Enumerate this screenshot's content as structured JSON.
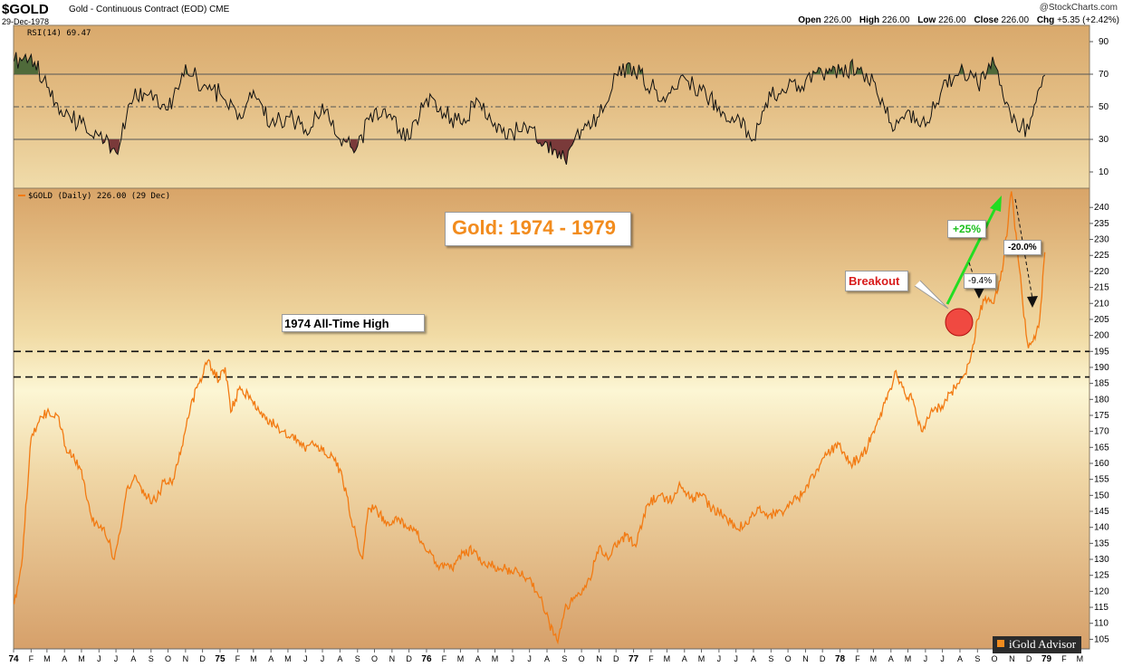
{
  "header": {
    "symbol": "$GOLD",
    "description": "Gold - Continuous Contract (EOD)",
    "exchange": "CME",
    "date": "29-Dec-1978",
    "credit": "@StockCharts.com",
    "open_label": "Open",
    "open": "226.00",
    "high_label": "High",
    "high": "226.00",
    "low_label": "Low",
    "low": "226.00",
    "close_label": "Close",
    "close": "226.00",
    "chg_label": "Chg",
    "chg": "+5.35 (+2.42%)"
  },
  "colors": {
    "price_line": "#f27a12",
    "rsi_line": "#111111",
    "rsi_overbought_fill": "#4f6a3a",
    "rsi_oversold_fill": "#7a3a3a",
    "arrow_green": "#22dd22",
    "breakout_circle": "#f03030"
  },
  "chart_data": [
    {
      "type": "line",
      "panel": "RSI",
      "label": "RSI(14) 69.47",
      "period": 14,
      "last_value": 69.47,
      "ylim": [
        0,
        100
      ],
      "y_ticks": [
        10,
        30,
        50,
        70,
        90
      ],
      "reference_lines": [
        30,
        50,
        70
      ],
      "x": [
        "1974-01-02",
        "1974-02-01",
        "1974-03-01",
        "1974-04-01",
        "1974-05-01",
        "1974-06-01",
        "1974-07-01",
        "1974-08-01",
        "1974-09-01",
        "1974-10-01",
        "1974-11-01",
        "1974-12-01",
        "1975-01-01",
        "1975-02-01",
        "1975-03-01",
        "1975-04-01",
        "1975-05-01",
        "1975-06-01",
        "1975-07-01",
        "1975-08-01",
        "1975-09-01",
        "1975-10-01",
        "1975-11-01",
        "1975-12-01",
        "1976-01-01",
        "1976-02-01",
        "1976-03-01",
        "1976-04-01",
        "1976-05-01",
        "1976-06-01",
        "1976-07-01",
        "1976-08-01",
        "1976-09-01",
        "1976-10-01",
        "1976-11-01",
        "1976-12-01",
        "1977-01-01",
        "1977-02-01",
        "1977-03-01",
        "1977-04-01",
        "1977-05-01",
        "1977-06-01",
        "1977-07-01",
        "1977-08-01",
        "1977-09-01",
        "1977-10-01",
        "1977-11-01",
        "1977-12-01",
        "1978-01-01",
        "1978-02-01",
        "1978-03-01",
        "1978-04-01",
        "1978-05-01",
        "1978-06-01",
        "1978-07-01",
        "1978-08-01",
        "1978-09-01",
        "1978-10-01",
        "1978-11-01",
        "1978-12-01",
        "1978-12-29"
      ],
      "values": [
        78,
        82,
        62,
        44,
        40,
        32,
        22,
        55,
        60,
        48,
        76,
        62,
        58,
        42,
        60,
        40,
        44,
        36,
        52,
        30,
        26,
        48,
        42,
        30,
        55,
        46,
        40,
        54,
        40,
        34,
        38,
        28,
        18,
        36,
        44,
        70,
        75,
        62,
        56,
        68,
        60,
        50,
        42,
        30,
        56,
        62,
        66,
        70,
        72,
        74,
        66,
        40,
        48,
        38,
        62,
        72,
        64,
        76,
        40,
        36,
        69.47
      ]
    },
    {
      "type": "line",
      "panel": "Price",
      "label": "$GOLD (Daily) 226.00 (29 Dec)",
      "series": [
        {
          "name": "$GOLD (Daily)",
          "x": [
            "1974-01-02",
            "1974-01-15",
            "1974-02-01",
            "1974-02-15",
            "1974-03-01",
            "1974-03-20",
            "1974-04-03",
            "1974-04-15",
            "1974-05-01",
            "1974-05-20",
            "1974-06-10",
            "1974-06-28",
            "1974-07-10",
            "1974-07-20",
            "1974-08-05",
            "1974-08-20",
            "1974-09-10",
            "1974-09-25",
            "1974-10-10",
            "1974-10-25",
            "1974-11-10",
            "1974-11-25",
            "1974-12-10",
            "1974-12-30",
            "1975-01-10",
            "1975-01-20",
            "1975-02-05",
            "1975-02-25",
            "1975-03-15",
            "1975-04-01",
            "1975-04-20",
            "1975-05-10",
            "1975-05-30",
            "1975-06-15",
            "1975-07-01",
            "1975-07-20",
            "1975-08-05",
            "1975-08-25",
            "1975-09-10",
            "1975-09-20",
            "1975-10-01",
            "1975-10-20",
            "1975-11-10",
            "1975-11-30",
            "1975-12-15",
            "1976-01-05",
            "1976-01-25",
            "1976-02-15",
            "1976-03-05",
            "1976-03-25",
            "1976-04-10",
            "1976-04-30",
            "1976-05-20",
            "1976-06-10",
            "1976-06-30",
            "1976-07-20",
            "1976-08-05",
            "1976-08-20",
            "1976-09-01",
            "1976-09-15",
            "1976-10-01",
            "1976-10-15",
            "1976-11-01",
            "1976-11-15",
            "1976-12-01",
            "1976-12-20",
            "1977-01-05",
            "1977-01-25",
            "1977-02-15",
            "1977-03-05",
            "1977-03-25",
            "1977-04-10",
            "1977-04-30",
            "1977-05-20",
            "1977-06-10",
            "1977-06-30",
            "1977-07-20",
            "1977-08-10",
            "1977-08-30",
            "1977-09-20",
            "1977-10-10",
            "1977-10-31",
            "1977-11-20",
            "1977-12-10",
            "1977-12-30",
            "1978-01-20",
            "1978-02-10",
            "1978-03-01",
            "1978-03-10",
            "1978-03-25",
            "1978-04-10",
            "1978-04-25",
            "1978-05-10",
            "1978-05-25",
            "1978-06-10",
            "1978-06-30",
            "1978-07-15",
            "1978-07-31",
            "1978-08-10",
            "1978-08-20",
            "1978-09-01",
            "1978-09-15",
            "1978-09-30",
            "1978-10-15",
            "1978-10-25",
            "1978-10-31",
            "1978-11-10",
            "1978-11-20",
            "1978-11-30",
            "1978-12-08",
            "1978-12-20",
            "1978-12-29"
          ],
          "values": [
            116,
            128,
            168,
            173,
            176,
            175,
            165,
            162,
            158,
            142,
            140,
            130,
            140,
            152,
            156,
            150,
            148,
            155,
            155,
            165,
            178,
            185,
            192,
            186,
            190,
            176,
            184,
            180,
            176,
            173,
            170,
            169,
            165,
            166,
            164,
            162,
            156,
            140,
            130,
            146,
            146,
            142,
            142,
            140,
            138,
            132,
            128,
            127,
            132,
            133,
            129,
            128,
            127,
            126,
            124,
            118,
            110,
            104,
            114,
            117,
            119,
            124,
            134,
            131,
            134,
            138,
            134,
            147,
            150,
            148,
            153,
            149,
            150,
            146,
            144,
            140,
            141,
            146,
            144,
            145,
            148,
            151,
            158,
            163,
            166,
            160,
            162,
            170,
            174,
            180,
            189,
            182,
            180,
            170,
            176,
            178,
            182,
            185,
            188,
            193,
            205,
            212,
            210,
            220,
            235,
            245,
            228,
            210,
            196,
            198,
            205,
            226
          ]
        }
      ],
      "ylim": [
        102,
        246
      ],
      "y_ticks": [
        105,
        110,
        115,
        120,
        125,
        130,
        135,
        140,
        145,
        150,
        155,
        160,
        165,
        170,
        175,
        180,
        185,
        190,
        195,
        200,
        205,
        210,
        215,
        220,
        225,
        230,
        235,
        240
      ],
      "x_tick_labels": [
        "74",
        "F",
        "M",
        "A",
        "M",
        "J",
        "J",
        "A",
        "S",
        "O",
        "N",
        "D",
        "75",
        "F",
        "M",
        "A",
        "M",
        "J",
        "J",
        "A",
        "S",
        "O",
        "N",
        "D",
        "76",
        "F",
        "M",
        "A",
        "M",
        "J",
        "J",
        "A",
        "S",
        "O",
        "N",
        "D",
        "77",
        "F",
        "M",
        "A",
        "M",
        "J",
        "J",
        "A",
        "S",
        "O",
        "N",
        "D",
        "78",
        "F",
        "M",
        "A",
        "M",
        "J",
        "J",
        "A",
        "S",
        "O",
        "N",
        "D",
        "79",
        "F",
        "M"
      ],
      "annotations": [
        {
          "text": "Gold: 1974 - 1979"
        },
        {
          "text": "1974 All-Time High"
        },
        {
          "text": "Breakout"
        },
        {
          "text": "+25%"
        },
        {
          "text": "-9.4%"
        },
        {
          "text": "-20.0%"
        }
      ]
    }
  ],
  "watermark": "iGold Advisor"
}
